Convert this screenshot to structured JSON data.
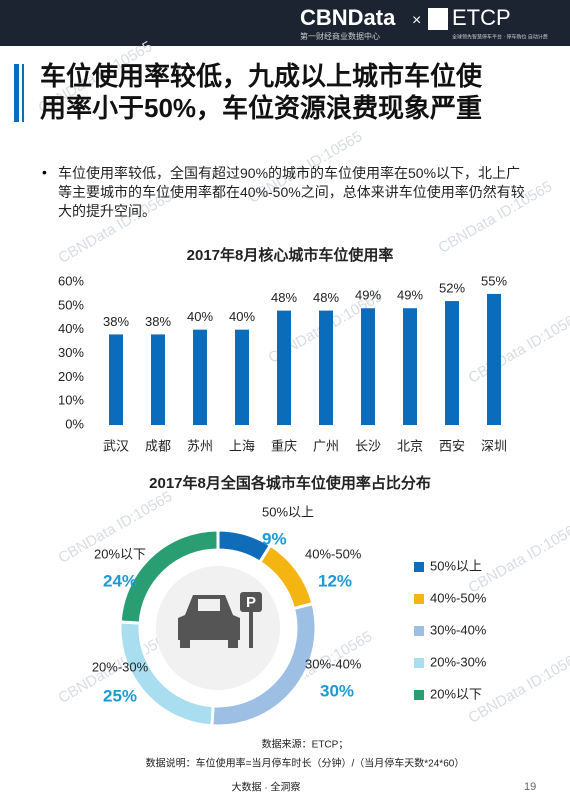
{
  "header": {
    "brand": "CBNData",
    "brand_sub": "第一财经商业数据中心",
    "times": "×",
    "partner": "ETCP",
    "partner_sub": "全球领先智慧停车平台 · 停车购位 自动计费"
  },
  "title": "车位使用率较低，九成以上城市车位使用率小于50%，车位资源浪费现象严重",
  "bullet": "车位使用率较低，全国有超过90%的城市的车位使用率在50%以下，北上广等主要城市的车位使用率都在40%-50%之间，总体来讲车位使用率仍然有较大的提升空间。",
  "watermark": "CBNData ID:10565",
  "chart_data": [
    {
      "type": "bar",
      "title": "2017年8月核心城市车位使用率",
      "categories": [
        "武汉",
        "成都",
        "苏州",
        "上海",
        "重庆",
        "广州",
        "长沙",
        "北京",
        "西安",
        "深圳"
      ],
      "values": [
        38,
        38,
        40,
        40,
        48,
        48,
        49,
        49,
        52,
        55
      ],
      "value_labels": [
        "38%",
        "38%",
        "40%",
        "40%",
        "48%",
        "48%",
        "49%",
        "49%",
        "52%",
        "55%"
      ],
      "color": "#0b6cbb",
      "ylim": [
        0,
        60
      ],
      "yticks": [
        {
          "value": 0,
          "label": "0%"
        },
        {
          "value": 10,
          "label": "10%"
        },
        {
          "value": 20,
          "label": "20%"
        },
        {
          "value": 30,
          "label": "30%"
        },
        {
          "value": 40,
          "label": "40%"
        },
        {
          "value": 50,
          "label": "50%"
        },
        {
          "value": 60,
          "label": "60%"
        }
      ],
      "grid": false
    },
    {
      "type": "pie",
      "title": "2017年8月全国各城市车位使用率占比分布",
      "categories": [
        "50%以上",
        "40%-50%",
        "30%-40%",
        "20%-30%",
        "20%以下"
      ],
      "values": [
        9,
        12,
        30,
        25,
        24
      ],
      "value_labels": [
        "9%",
        "12%",
        "30%",
        "25%",
        "24%"
      ],
      "colors": [
        "#0f6cb8",
        "#f4b512",
        "#9dbfe3",
        "#a9def0",
        "#2a9e73"
      ],
      "legend": "right"
    }
  ],
  "source": "数据来源：ETCP；",
  "note": "数据说明：车位使用率=当月停车时长（分钟）/（当月停车天数*24*60）",
  "footer": "大数据 · 全洞察",
  "page_number": "19"
}
